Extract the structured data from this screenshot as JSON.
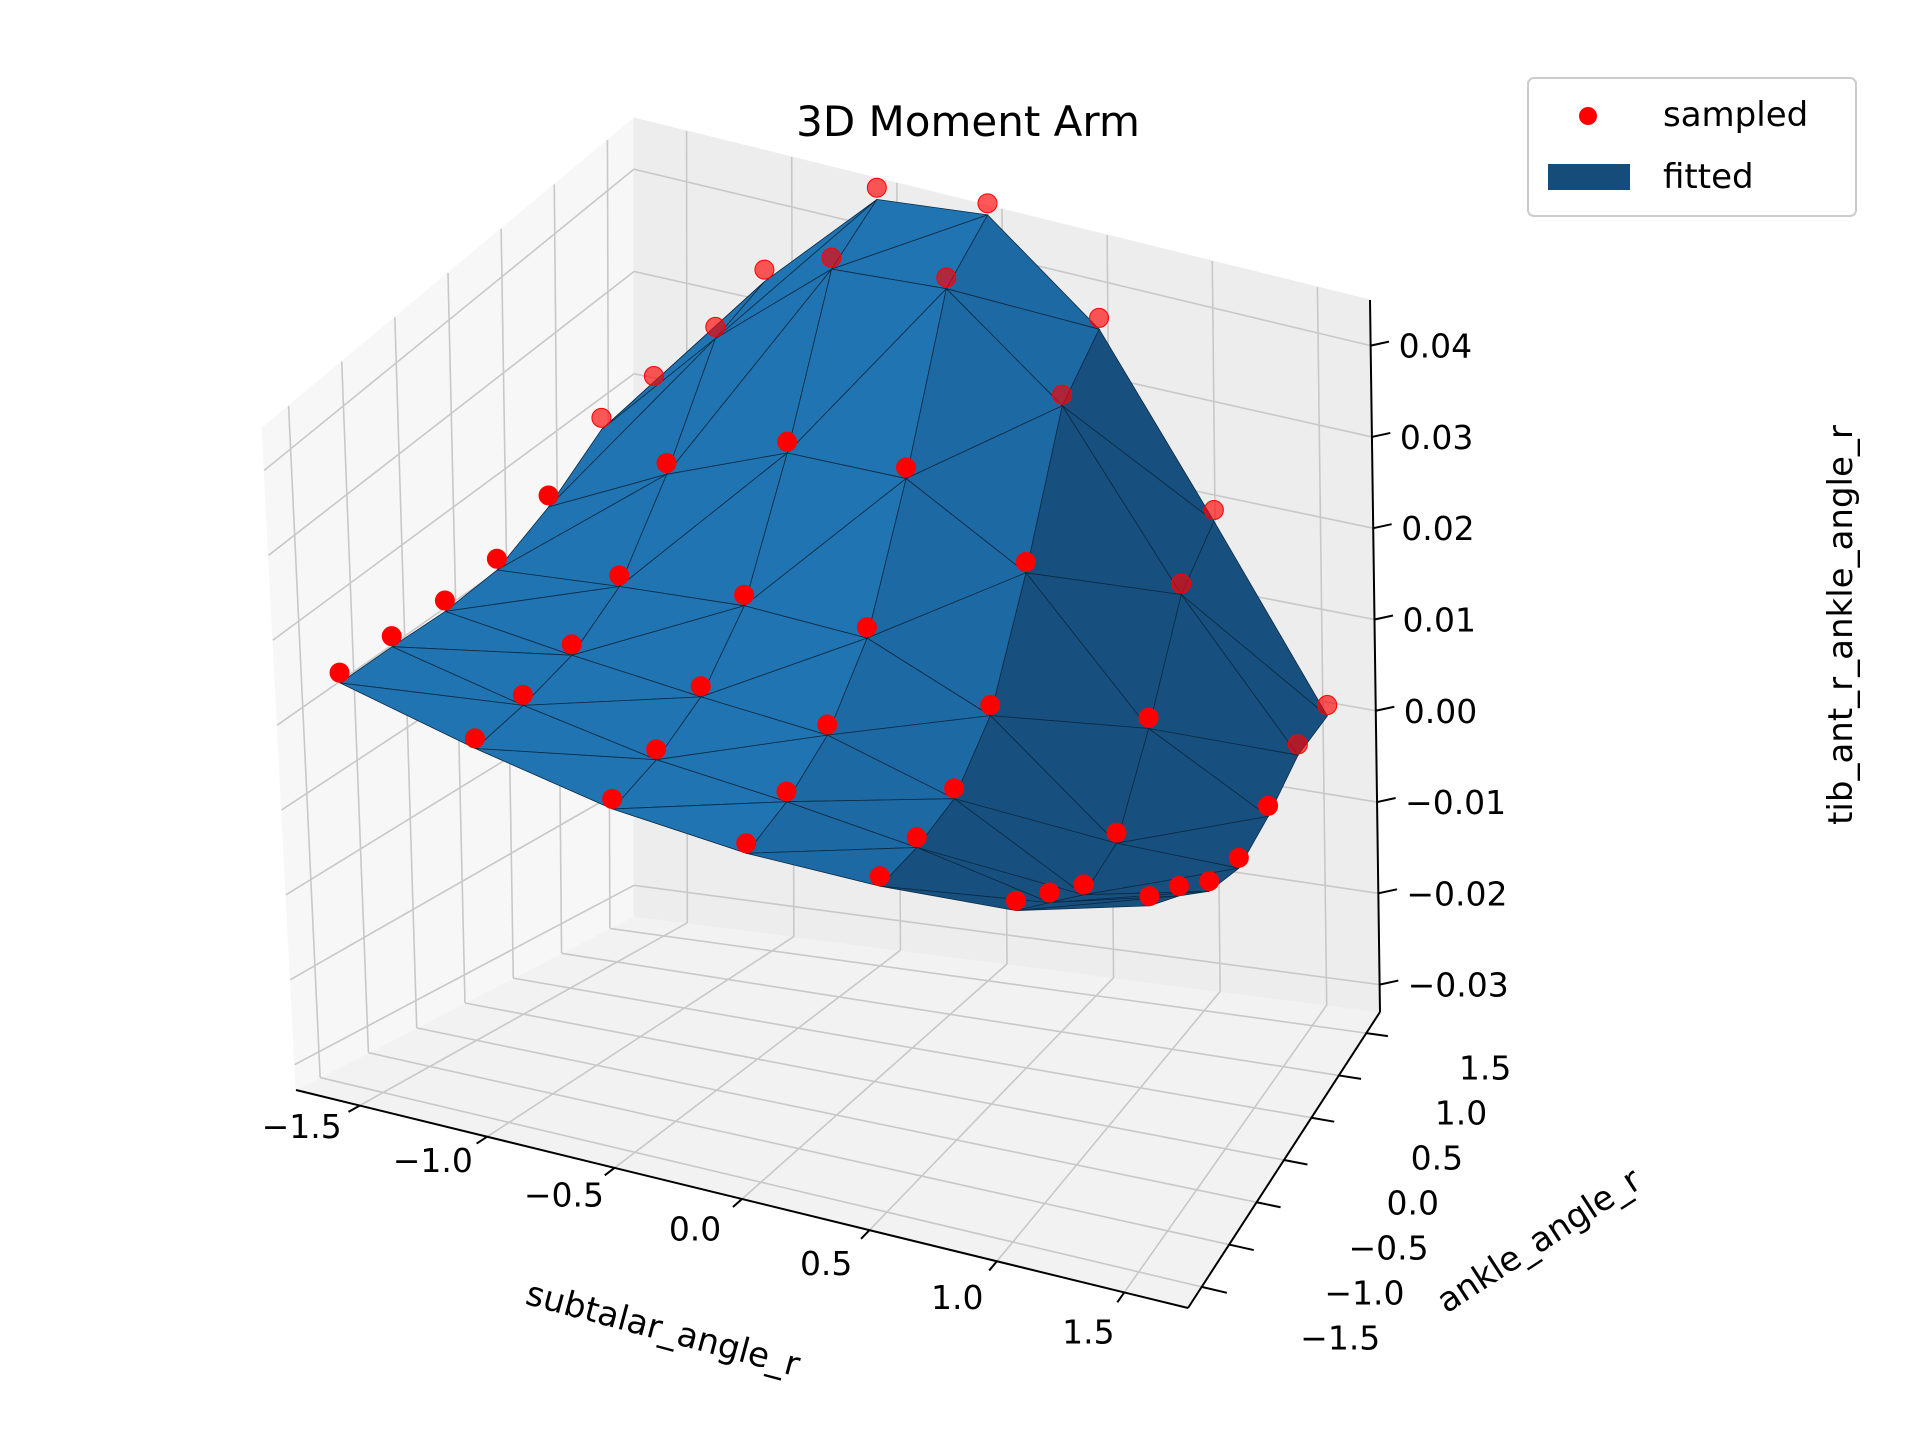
{
  "chart_data": {
    "type": "surface3d",
    "title": "3D Moment Arm",
    "xlabel": "subtalar_angle_r",
    "ylabel": "ankle_angle_r",
    "zlabel": "tib_ant_r_ankle_angle_r",
    "xlim": [
      -1.75,
      1.75
    ],
    "ylim": [
      -1.75,
      1.75
    ],
    "zlim": [
      -0.033,
      0.045
    ],
    "x_ticks": [
      "−1.5",
      "−1.0",
      "−0.5",
      "0.0",
      "0.5",
      "1.0",
      "1.5"
    ],
    "x_tick_values": [
      -1.5,
      -1.0,
      -0.5,
      0.0,
      0.5,
      1.0,
      1.5
    ],
    "y_ticks": [
      "−1.5",
      "−1.0",
      "−0.5",
      "0.0",
      "0.5",
      "1.0",
      "1.5"
    ],
    "y_tick_values": [
      -1.5,
      -1.0,
      -0.5,
      0.0,
      0.5,
      1.0,
      1.5
    ],
    "z_ticks": [
      "−0.03",
      "−0.02",
      "−0.01",
      "0.00",
      "0.01",
      "0.02",
      "0.03",
      "0.04"
    ],
    "z_tick_values": [
      -0.03,
      -0.02,
      -0.01,
      0.0,
      0.01,
      0.02,
      0.03,
      0.04
    ],
    "grid": true,
    "legend": {
      "placement": "top-right",
      "entries": [
        {
          "label": "sampled",
          "color": "#ff0000",
          "marker": "dot"
        },
        {
          "label": "fitted",
          "color": "#154c79",
          "marker": "patch"
        }
      ]
    },
    "colors": {
      "surface": "#1f77b4",
      "points": "#ff0000"
    },
    "series": [
      {
        "name": "sampled",
        "kind": "scatter",
        "grid_x": [
          -1.57,
          -1.05,
          -0.52,
          0.0,
          0.52,
          1.05,
          1.57
        ],
        "grid_y": [
          -1.57,
          -1.05,
          -0.52,
          0.0,
          0.52,
          1.05,
          1.57
        ]
      },
      {
        "name": "fitted",
        "kind": "triangulated-surface",
        "function": "moment arm vs subtalar and ankle angle"
      }
    ]
  }
}
